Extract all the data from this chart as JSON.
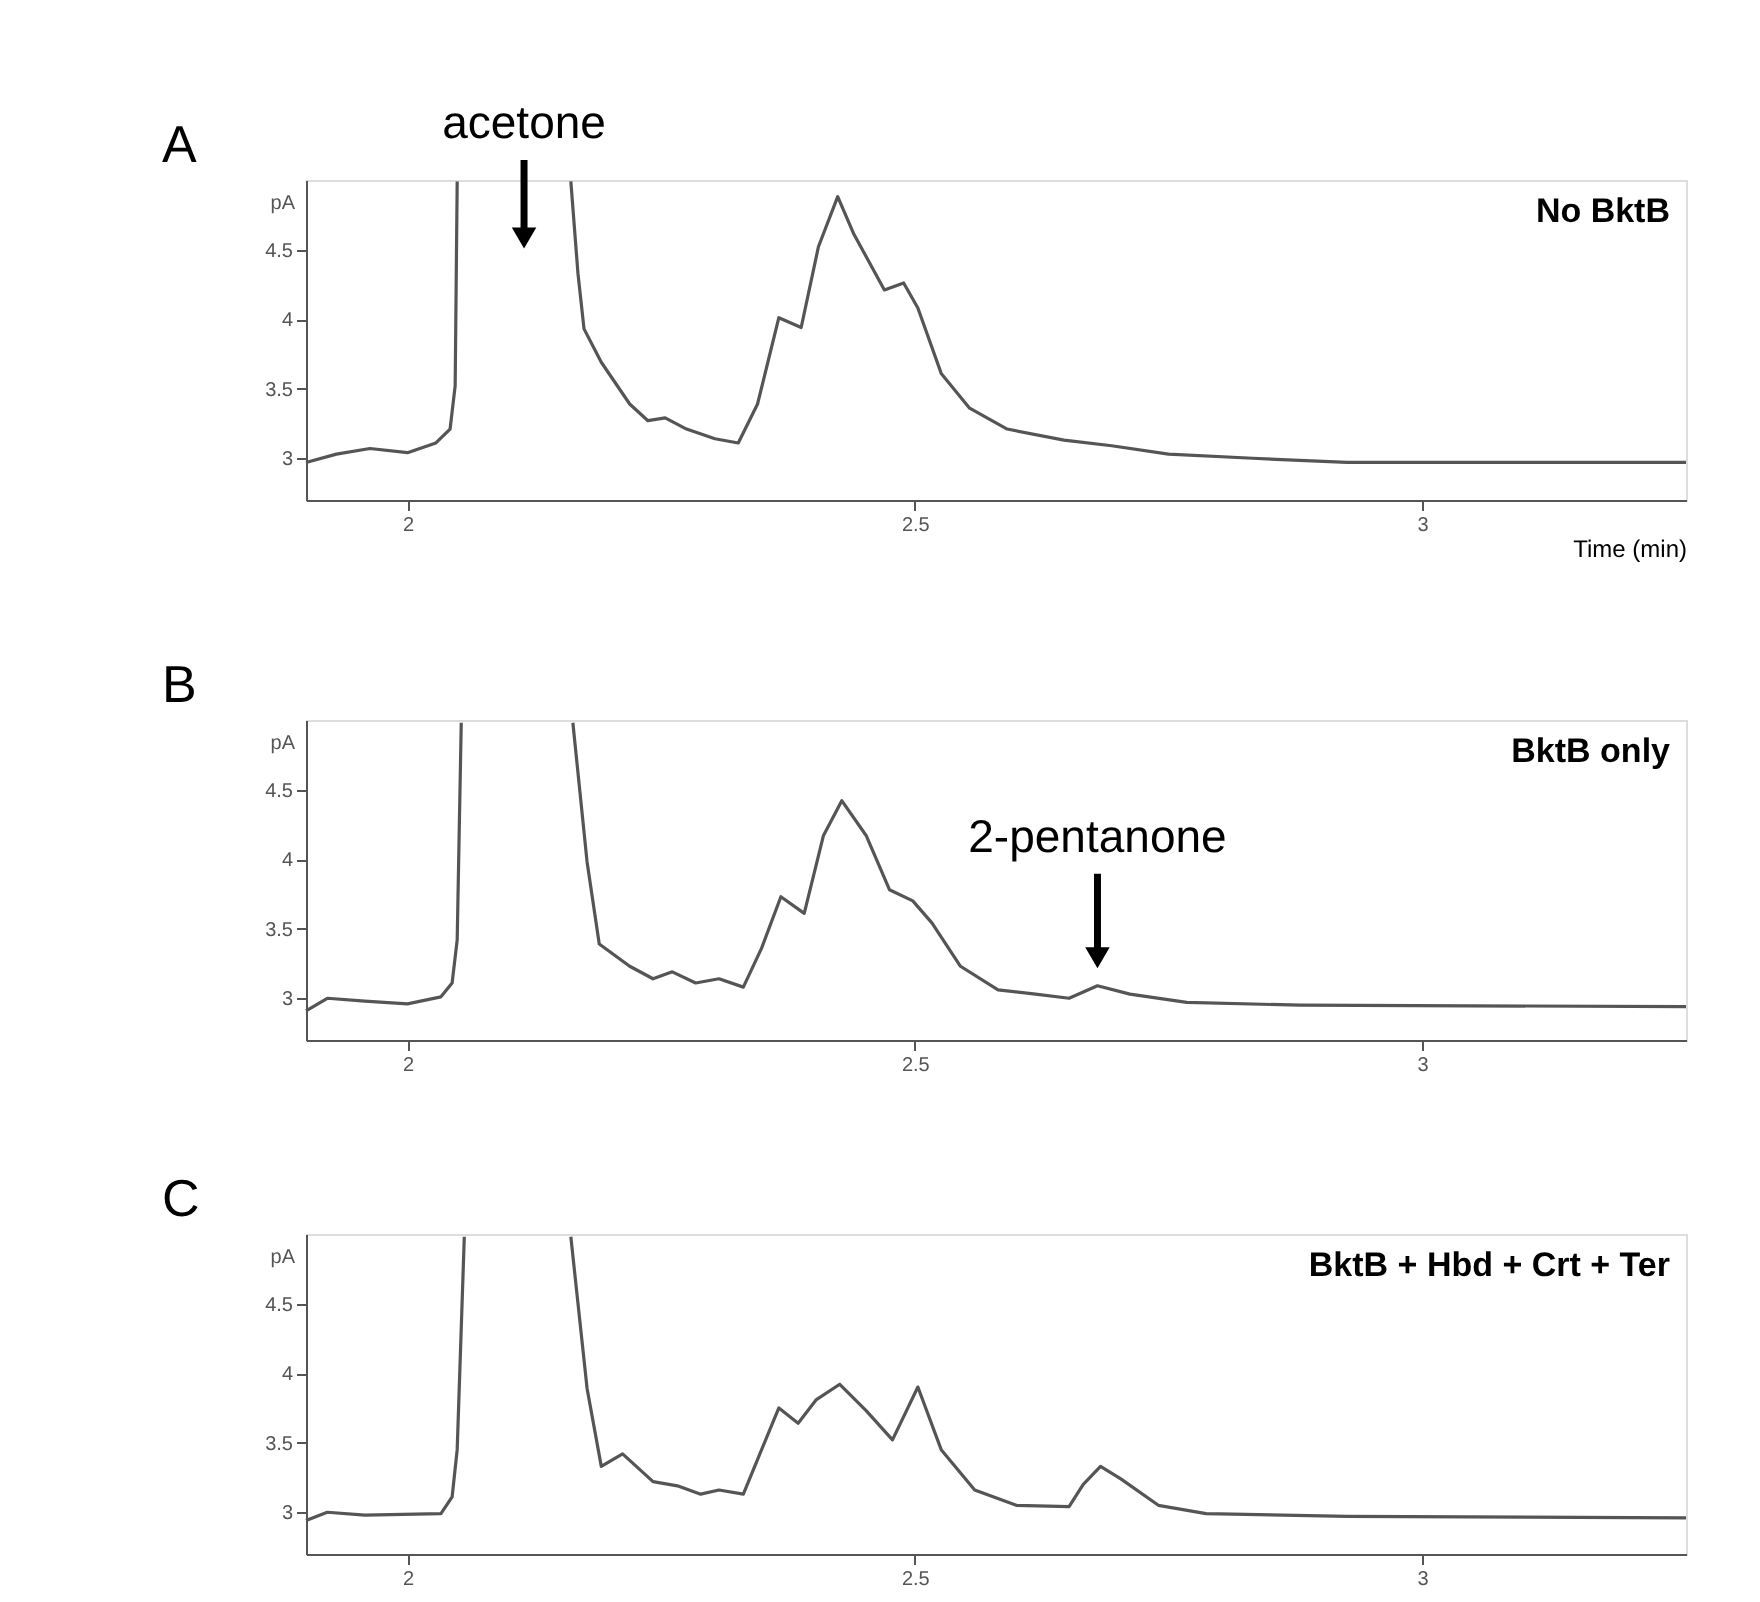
{
  "chart_data": [
    {
      "type": "line",
      "title": "No BktB",
      "xlabel": "Time (min)",
      "ylabel": "pA",
      "annotations": [
        "A",
        "acetone"
      ],
      "xlim": [
        1.9,
        3.26
      ],
      "xticks": [
        2,
        2.5,
        3
      ],
      "ylim": [
        2.7,
        5.0
      ],
      "yticks": [
        3,
        3.5,
        4,
        4.5
      ],
      "grid": false,
      "marker": "none",
      "line_style": "solid",
      "series": [
        {
          "color": "#555555",
          "x": [
            1.9,
            1.93,
            1.963,
            2.0,
            2.028,
            2.042,
            2.047,
            2.049
          ],
          "values": [
            2.97,
            3.03,
            3.07,
            3.04,
            3.11,
            3.21,
            3.52,
            4.99
          ]
        },
        {
          "color": "#555555",
          "x": [
            2.161,
            2.168,
            2.174,
            2.191,
            2.219,
            2.237,
            2.254,
            2.275,
            2.303,
            2.326,
            2.345,
            2.366,
            2.388,
            2.405,
            2.424,
            2.44,
            2.47,
            2.489,
            2.503,
            2.526,
            2.554,
            2.591,
            2.647,
            2.694,
            2.75,
            2.833,
            2.926,
            3.26
          ],
          "values": [
            4.99,
            4.33,
            3.93,
            3.69,
            3.39,
            3.27,
            3.29,
            3.21,
            3.14,
            3.11,
            3.39,
            4.01,
            3.94,
            4.52,
            4.88,
            4.61,
            4.21,
            4.26,
            4.08,
            3.61,
            3.36,
            3.21,
            3.13,
            3.09,
            3.03,
            3.0,
            2.97,
            2.97
          ]
        }
      ]
    },
    {
      "type": "line",
      "title": "BktB only",
      "ylabel": "pA",
      "annotations": [
        "B",
        {
          "text": "2-pentanone",
          "x": 2.68,
          "y": 3.09
        }
      ],
      "xlim": [
        1.9,
        3.26
      ],
      "xticks": [
        2,
        2.5,
        3
      ],
      "ylim": [
        2.7,
        5.0
      ],
      "yticks": [
        3,
        3.5,
        4,
        4.5
      ],
      "grid": false,
      "marker": "none",
      "line_style": "solid",
      "series": [
        {
          "color": "#555555",
          "x": [
            1.9,
            1.921,
            1.958,
            2.0,
            2.033,
            2.044,
            2.049,
            2.053
          ],
          "values": [
            2.91,
            3.0,
            2.98,
            2.96,
            3.01,
            3.11,
            3.42,
            4.98
          ]
        },
        {
          "color": "#555555",
          "x": [
            2.163,
            2.177,
            2.189,
            2.219,
            2.242,
            2.261,
            2.284,
            2.307,
            2.331,
            2.349,
            2.368,
            2.391,
            2.41,
            2.428,
            2.452,
            2.475,
            2.498,
            2.517,
            2.545,
            2.582,
            2.619,
            2.652,
            2.68,
            2.712,
            2.768,
            2.88,
            3.26
          ],
          "values": [
            4.98,
            3.98,
            3.39,
            3.23,
            3.14,
            3.19,
            3.11,
            3.14,
            3.08,
            3.36,
            3.73,
            3.61,
            4.17,
            4.42,
            4.17,
            3.78,
            3.7,
            3.54,
            3.23,
            3.06,
            3.03,
            3.0,
            3.09,
            3.03,
            2.97,
            2.95,
            2.94
          ]
        }
      ]
    },
    {
      "type": "line",
      "title": "BktB + Hbd + Crt + Ter",
      "ylabel": "pA",
      "annotations": [
        "C"
      ],
      "xlim": [
        1.9,
        3.26
      ],
      "xticks": [
        2,
        2.5,
        3
      ],
      "ylim": [
        2.7,
        5.0
      ],
      "yticks": [
        3,
        3.5,
        4,
        4.5
      ],
      "grid": false,
      "marker": "none",
      "line_style": "solid",
      "series": [
        {
          "color": "#555555",
          "x": [
            1.9,
            1.921,
            1.958,
            2.033,
            2.044,
            2.049,
            2.056
          ],
          "values": [
            2.94,
            3.0,
            2.98,
            2.99,
            3.11,
            3.45,
            4.98
          ]
        },
        {
          "color": "#555555",
          "x": [
            2.161,
            2.177,
            2.191,
            2.212,
            2.242,
            2.266,
            2.289,
            2.307,
            2.331,
            2.349,
            2.366,
            2.385,
            2.403,
            2.426,
            2.452,
            2.478,
            2.503,
            2.526,
            2.559,
            2.6,
            2.652,
            2.666,
            2.683,
            2.703,
            2.74,
            2.787,
            2.926,
            3.26
          ],
          "values": [
            4.98,
            3.89,
            3.33,
            3.42,
            3.22,
            3.19,
            3.13,
            3.16,
            3.13,
            3.45,
            3.75,
            3.64,
            3.81,
            3.92,
            3.73,
            3.52,
            3.9,
            3.45,
            3.16,
            3.05,
            3.04,
            3.2,
            3.33,
            3.24,
            3.05,
            2.99,
            2.97,
            2.96
          ]
        }
      ]
    }
  ]
}
